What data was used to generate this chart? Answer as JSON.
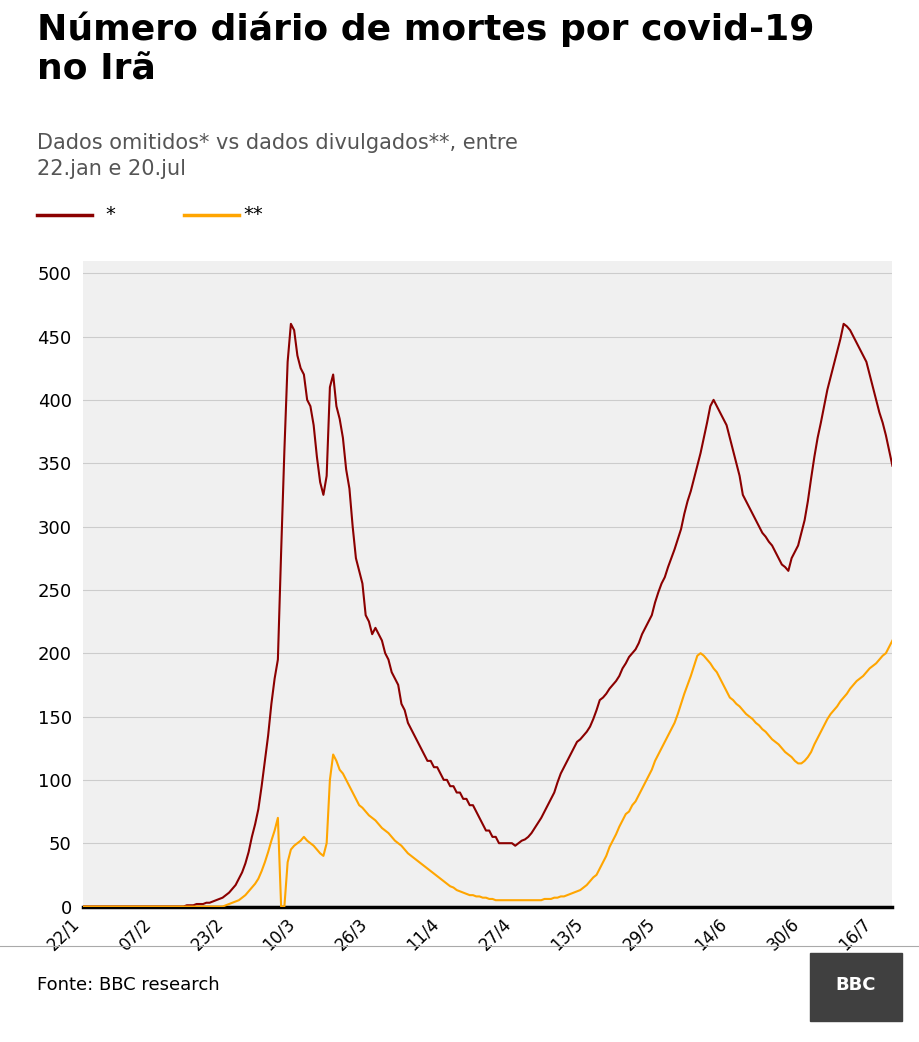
{
  "title_line1": "Número diário de mortes por covid-19",
  "title_line2": "no Irã",
  "subtitle": "Dados omitidos* vs dados divulgados**, entre\n22.jan e 20.jul",
  "legend_label1": "*",
  "legend_label2": "**",
  "color_dark_red": "#8B0000",
  "color_orange": "#FFA500",
  "color_background": "#FFFFFF",
  "color_grid": "#CCCCCC",
  "color_axis_bottom": "#000000",
  "ylabel_ticks": [
    0,
    50,
    100,
    150,
    200,
    250,
    300,
    350,
    400,
    450,
    500
  ],
  "ylim": [
    0,
    510
  ],
  "source_text": "Fonte: BBC research",
  "footer_bg": "#FFFFFF",
  "tick_labels": [
    "22/1",
    "07/2",
    "23/2",
    "10/3",
    "26/3",
    "11/4",
    "27/4",
    "13/5",
    "29/5",
    "14/6",
    "30/6",
    "16/7"
  ],
  "dark_red_series": [
    0,
    0,
    0,
    0,
    0,
    0,
    0,
    0,
    0,
    0,
    0,
    0,
    0,
    0,
    0,
    0,
    0,
    0,
    0,
    0,
    0,
    0,
    0,
    0,
    0,
    0,
    0,
    0,
    0,
    0,
    0,
    0,
    1,
    1,
    1,
    2,
    2,
    2,
    3,
    3,
    4,
    5,
    6,
    7,
    9,
    11,
    14,
    17,
    22,
    27,
    34,
    43,
    55,
    65,
    77,
    95,
    115,
    135,
    160,
    180,
    195,
    280,
    360,
    430,
    460,
    455,
    435,
    425,
    420,
    400,
    395,
    380,
    355,
    335,
    325,
    340,
    410,
    420,
    395,
    385,
    370,
    345,
    330,
    300,
    275,
    265,
    255,
    230,
    225,
    215,
    220,
    215,
    210,
    200,
    195,
    185,
    180,
    175,
    160,
    155,
    145,
    140,
    135,
    130,
    125,
    120,
    115,
    115,
    110,
    110,
    105,
    100,
    100,
    95,
    95,
    90,
    90,
    85,
    85,
    80,
    80,
    75,
    70,
    65,
    60,
    60,
    55,
    55,
    50,
    50,
    50,
    50,
    50,
    48,
    50,
    52,
    53,
    55,
    58,
    62,
    66,
    70,
    75,
    80,
    85,
    90,
    98,
    105,
    110,
    115,
    120,
    125,
    130,
    132,
    135,
    138,
    142,
    148,
    155,
    163,
    165,
    168,
    172,
    175,
    178,
    182,
    188,
    192,
    197,
    200,
    203,
    208,
    215,
    220,
    225,
    230,
    240,
    248,
    255,
    260,
    268,
    275,
    282,
    290,
    298,
    310,
    320,
    328,
    338,
    348,
    358,
    370,
    382,
    395,
    400,
    395,
    390,
    385,
    380,
    370,
    360,
    350,
    340,
    325,
    320,
    315,
    310,
    305,
    300,
    295,
    292,
    288,
    285,
    280,
    275,
    270,
    268,
    265,
    275,
    280,
    285,
    295,
    305,
    320,
    338,
    355,
    370,
    382,
    395,
    408,
    418,
    428,
    438,
    448,
    460,
    458,
    455,
    450,
    445,
    440,
    435,
    430,
    420,
    410,
    400,
    390,
    382,
    372,
    360,
    348
  ],
  "orange_series": [
    0,
    0,
    0,
    0,
    0,
    0,
    0,
    0,
    0,
    0,
    0,
    0,
    0,
    0,
    0,
    0,
    0,
    0,
    0,
    0,
    0,
    0,
    0,
    0,
    0,
    0,
    0,
    0,
    0,
    0,
    0,
    0,
    0,
    0,
    0,
    0,
    0,
    0,
    0,
    0,
    0,
    0,
    0,
    0,
    1,
    2,
    3,
    4,
    5,
    7,
    9,
    12,
    15,
    18,
    22,
    28,
    35,
    43,
    52,
    60,
    70,
    0,
    0,
    35,
    45,
    48,
    50,
    52,
    55,
    52,
    50,
    48,
    45,
    42,
    40,
    50,
    100,
    120,
    115,
    108,
    105,
    100,
    95,
    90,
    85,
    80,
    78,
    75,
    72,
    70,
    68,
    65,
    62,
    60,
    58,
    55,
    52,
    50,
    48,
    45,
    42,
    40,
    38,
    36,
    34,
    32,
    30,
    28,
    26,
    24,
    22,
    20,
    18,
    16,
    15,
    13,
    12,
    11,
    10,
    9,
    9,
    8,
    8,
    7,
    7,
    6,
    6,
    5,
    5,
    5,
    5,
    5,
    5,
    5,
    5,
    5,
    5,
    5,
    5,
    5,
    5,
    5,
    6,
    6,
    6,
    7,
    7,
    8,
    8,
    9,
    10,
    11,
    12,
    13,
    15,
    17,
    20,
    23,
    25,
    30,
    35,
    40,
    47,
    52,
    57,
    63,
    68,
    73,
    75,
    80,
    83,
    88,
    93,
    98,
    103,
    108,
    115,
    120,
    125,
    130,
    135,
    140,
    145,
    152,
    160,
    168,
    175,
    182,
    190,
    198,
    200,
    198,
    195,
    192,
    188,
    185,
    180,
    175,
    170,
    165,
    163,
    160,
    158,
    155,
    152,
    150,
    148,
    145,
    143,
    140,
    138,
    135,
    132,
    130,
    128,
    125,
    122,
    120,
    118,
    115,
    113,
    113,
    115,
    118,
    122,
    128,
    133,
    138,
    143,
    148,
    152,
    155,
    158,
    162,
    165,
    168,
    172,
    175,
    178,
    180,
    182,
    185,
    188,
    190,
    192,
    195,
    198,
    200,
    205,
    210
  ]
}
